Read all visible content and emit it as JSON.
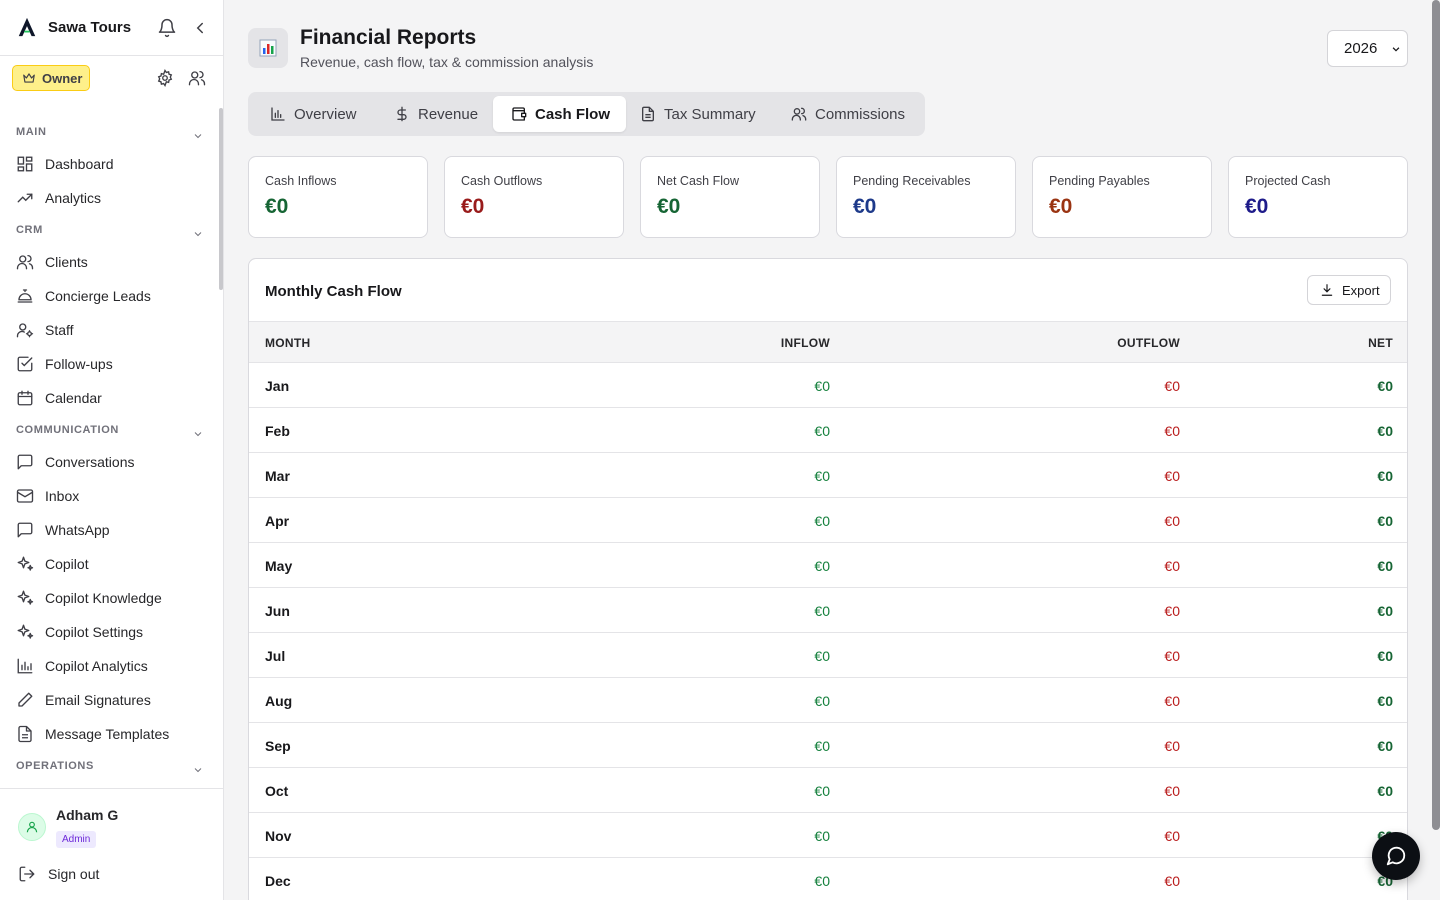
{
  "app": {
    "name": "Sawa Tours"
  },
  "role_badge": "Owner",
  "sidebar": {
    "sections": [
      {
        "id": "main",
        "label": "MAIN",
        "items": [
          {
            "label": "Dashboard",
            "icon": "dashboard-icon"
          },
          {
            "label": "Analytics",
            "icon": "trending-up-icon"
          }
        ]
      },
      {
        "id": "crm",
        "label": "CRM",
        "items": [
          {
            "label": "Clients",
            "icon": "users-icon"
          },
          {
            "label": "Concierge Leads",
            "icon": "concierge-bell-icon"
          },
          {
            "label": "Staff",
            "icon": "user-cog-icon"
          },
          {
            "label": "Follow-ups",
            "icon": "check-square-icon"
          },
          {
            "label": "Calendar",
            "icon": "calendar-icon"
          }
        ]
      },
      {
        "id": "communication",
        "label": "COMMUNICATION",
        "items": [
          {
            "label": "Conversations",
            "icon": "message-square-icon"
          },
          {
            "label": "Inbox",
            "icon": "mail-icon"
          },
          {
            "label": "WhatsApp",
            "icon": "message-square-icon"
          },
          {
            "label": "Copilot",
            "icon": "sparkles-icon"
          },
          {
            "label": "Copilot Knowledge",
            "icon": "sparkles-icon"
          },
          {
            "label": "Copilot Settings",
            "icon": "sparkles-icon"
          },
          {
            "label": "Copilot Analytics",
            "icon": "bar-chart-icon"
          },
          {
            "label": "Email Signatures",
            "icon": "pen-icon"
          },
          {
            "label": "Message Templates",
            "icon": "file-text-icon"
          }
        ]
      },
      {
        "id": "operations",
        "label": "OPERATIONS",
        "items": []
      }
    ]
  },
  "user": {
    "name": "Adham G",
    "role": "Admin",
    "signout": "Sign out"
  },
  "header": {
    "title": "Financial Reports",
    "subtitle": "Revenue, cash flow, tax & commission analysis",
    "year": "2026"
  },
  "tabs": [
    {
      "label": "Overview",
      "icon": "bar-chart-icon"
    },
    {
      "label": "Revenue",
      "icon": "dollar-icon"
    },
    {
      "label": "Cash Flow",
      "icon": "wallet-icon",
      "active": true
    },
    {
      "label": "Tax Summary",
      "icon": "file-text-icon"
    },
    {
      "label": "Commissions",
      "icon": "users-icon"
    }
  ],
  "summary_cards": [
    {
      "label": "Cash Inflows",
      "value": "€0",
      "color": "#166534"
    },
    {
      "label": "Cash Outflows",
      "value": "€0",
      "color": "#991b1b"
    },
    {
      "label": "Net Cash Flow",
      "value": "€0",
      "color": "#166534"
    },
    {
      "label": "Pending Receivables",
      "value": "€0",
      "color": "#1e3a8a"
    },
    {
      "label": "Pending Payables",
      "value": "€0",
      "color": "#9a3412"
    },
    {
      "label": "Projected Cash",
      "value": "€0",
      "color": "#1e1b8a"
    }
  ],
  "table": {
    "title": "Monthly Cash Flow",
    "export_label": "Export",
    "headers": {
      "month": "MONTH",
      "inflow": "INFLOW",
      "outflow": "OUTFLOW",
      "net": "NET"
    },
    "rows": [
      {
        "month": "Jan",
        "inflow": "€0",
        "outflow": "€0",
        "net": "€0"
      },
      {
        "month": "Feb",
        "inflow": "€0",
        "outflow": "€0",
        "net": "€0"
      },
      {
        "month": "Mar",
        "inflow": "€0",
        "outflow": "€0",
        "net": "€0"
      },
      {
        "month": "Apr",
        "inflow": "€0",
        "outflow": "€0",
        "net": "€0"
      },
      {
        "month": "May",
        "inflow": "€0",
        "outflow": "€0",
        "net": "€0"
      },
      {
        "month": "Jun",
        "inflow": "€0",
        "outflow": "€0",
        "net": "€0"
      },
      {
        "month": "Jul",
        "inflow": "€0",
        "outflow": "€0",
        "net": "€0"
      },
      {
        "month": "Aug",
        "inflow": "€0",
        "outflow": "€0",
        "net": "€0"
      },
      {
        "month": "Sep",
        "inflow": "€0",
        "outflow": "€0",
        "net": "€0"
      },
      {
        "month": "Oct",
        "inflow": "€0",
        "outflow": "€0",
        "net": "€0"
      },
      {
        "month": "Nov",
        "inflow": "€0",
        "outflow": "€0",
        "net": "€0"
      },
      {
        "month": "Dec",
        "inflow": "€0",
        "outflow": "€0",
        "net": "€0"
      }
    ]
  },
  "chat_button_icon": "chat-bubble-icon"
}
